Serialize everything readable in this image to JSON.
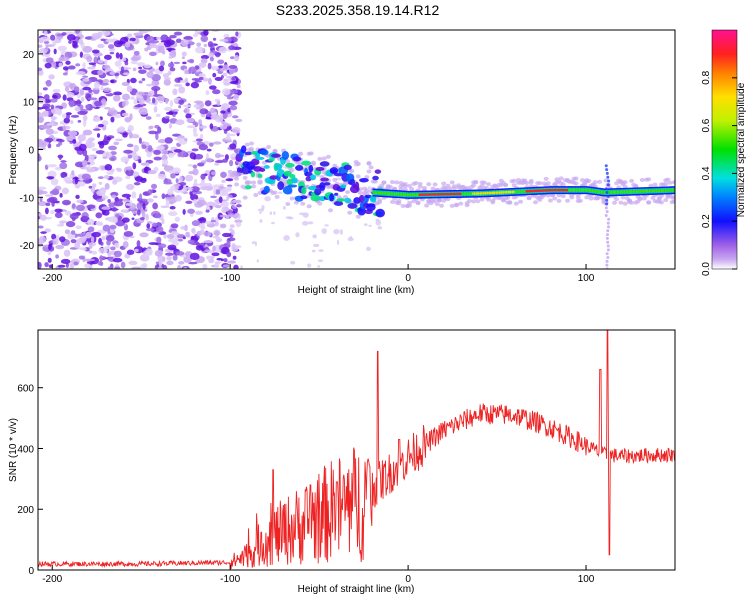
{
  "title": "S233.2025.358.19.14.R12",
  "colors": {
    "snr_line": "#ee2222",
    "spectrogram_noise": "#a070e8",
    "spectrogram_dense": "#6010e0"
  },
  "chart_data": [
    {
      "type": "heatmap",
      "name": "spectrogram",
      "xlabel": "Height of straight line (km)",
      "ylabel": "Frequency (Hz)",
      "xlim": [
        -208,
        150
      ],
      "ylim": [
        -25,
        25
      ],
      "xticks": [
        -200,
        -100,
        0,
        100
      ],
      "yticks": [
        -20,
        -10,
        0,
        10,
        20
      ],
      "colorbar": {
        "label": "Normalized spectral amplitude",
        "range": [
          0,
          1
        ],
        "ticks": [
          0.0,
          0.2,
          0.4,
          0.6,
          0.8
        ],
        "tick_labels": [
          "0.0",
          "0.2",
          "0.4",
          "0.6",
          "0.8"
        ]
      },
      "noise_region_x": [
        -208,
        -95
      ],
      "signal_track": [
        {
          "x": -95,
          "y": -4
        },
        {
          "x": -80,
          "y": -5
        },
        {
          "x": -60,
          "y": -6
        },
        {
          "x": -40,
          "y": -7
        },
        {
          "x": -20,
          "y": -9
        },
        {
          "x": 0,
          "y": -9.5
        },
        {
          "x": 40,
          "y": -9.2
        },
        {
          "x": 80,
          "y": -8.5
        },
        {
          "x": 100,
          "y": -8.5
        },
        {
          "x": 110,
          "y": -9
        },
        {
          "x": 150,
          "y": -8.5
        }
      ]
    },
    {
      "type": "line",
      "name": "snr",
      "xlabel": "Height of straight line (km)",
      "ylabel": "SNR (10 * v/v)",
      "xlim": [
        -208,
        150
      ],
      "ylim": [
        0,
        790
      ],
      "xticks": [
        -200,
        -100,
        0,
        100
      ],
      "yticks": [
        0,
        200,
        400,
        600
      ],
      "series": [
        {
          "name": "SNR",
          "envelope": [
            {
              "x": -208,
              "y": 20
            },
            {
              "x": -150,
              "y": 20
            },
            {
              "x": -100,
              "y": 25
            },
            {
              "x": -90,
              "y": 50
            },
            {
              "x": -80,
              "y": 100
            },
            {
              "x": -60,
              "y": 150
            },
            {
              "x": -40,
              "y": 200
            },
            {
              "x": -25,
              "y": 230
            },
            {
              "x": -18,
              "y": 280
            },
            {
              "x": -10,
              "y": 320
            },
            {
              "x": 0,
              "y": 370
            },
            {
              "x": 20,
              "y": 460
            },
            {
              "x": 40,
              "y": 515
            },
            {
              "x": 60,
              "y": 510
            },
            {
              "x": 80,
              "y": 470
            },
            {
              "x": 100,
              "y": 410
            },
            {
              "x": 110,
              "y": 380
            },
            {
              "x": 120,
              "y": 375
            },
            {
              "x": 150,
              "y": 380
            }
          ],
          "spikes": [
            {
              "x": -76,
              "y": 330
            },
            {
              "x": -55,
              "y": 280
            },
            {
              "x": -40,
              "y": 290
            },
            {
              "x": -17,
              "y": 720
            },
            {
              "x": -5,
              "y": 430
            },
            {
              "x": 112,
              "y": 790
            },
            {
              "x": 113,
              "y": 50
            },
            {
              "x": 108,
              "y": 660
            }
          ]
        }
      ]
    }
  ]
}
